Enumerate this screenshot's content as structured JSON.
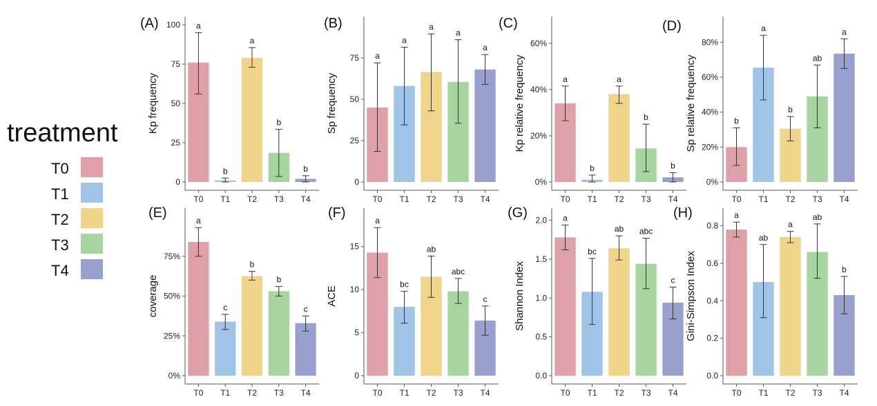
{
  "legend": {
    "title": "treatment",
    "items": [
      {
        "label": "T0",
        "color": "#E0A0A8"
      },
      {
        "label": "T1",
        "color": "#A0C4E8"
      },
      {
        "label": "T2",
        "color": "#EFD48A"
      },
      {
        "label": "T3",
        "color": "#A8D4A0"
      },
      {
        "label": "T4",
        "color": "#98A0D0"
      }
    ]
  },
  "chart_data": [
    {
      "panel": "(A)",
      "type": "bar",
      "ylabel": "Kp frequency",
      "categories": [
        "T0",
        "T1",
        "T2",
        "T3",
        "T4"
      ],
      "values": [
        76,
        1,
        79,
        18.5,
        2
      ],
      "err_low": [
        56,
        0,
        73,
        3.5,
        0
      ],
      "err_high": [
        95,
        2.5,
        85.5,
        33.5,
        4
      ],
      "letters": [
        "a",
        "b",
        "a",
        "b",
        "b"
      ],
      "ylim": [
        0,
        100
      ],
      "yticks": [
        0,
        25,
        50,
        75,
        100
      ],
      "ytick_labels": [
        "0",
        "25",
        "50",
        "75",
        "100"
      ]
    },
    {
      "panel": "(B)",
      "type": "bar",
      "ylabel": "Sp frequency",
      "categories": [
        "T0",
        "T1",
        "T2",
        "T3",
        "T4"
      ],
      "values": [
        45,
        58,
        66.5,
        60.5,
        68
      ],
      "err_low": [
        18.5,
        34.5,
        43,
        35.5,
        59
      ],
      "err_high": [
        72,
        81.5,
        89.5,
        86,
        77
      ],
      "letters": [
        "a",
        "a",
        "a",
        "a",
        "a"
      ],
      "ylim": [
        0,
        95
      ],
      "yticks": [
        0,
        25,
        50,
        75
      ],
      "ytick_labels": [
        "0",
        "25",
        "50",
        "75"
      ]
    },
    {
      "panel": "(C)",
      "type": "bar",
      "ylabel": "Kp relative frequency",
      "categories": [
        "T0",
        "T1",
        "T2",
        "T3",
        "T4"
      ],
      "values": [
        34,
        1,
        38,
        14.5,
        2
      ],
      "err_low": [
        26.5,
        0,
        34,
        4.5,
        0
      ],
      "err_high": [
        41.5,
        3,
        41.5,
        25,
        4
      ],
      "letters": [
        "a",
        "b",
        "a",
        "b",
        "b"
      ],
      "ylim": [
        0,
        68
      ],
      "yticks": [
        0,
        20,
        40,
        60
      ],
      "ytick_labels": [
        "0%",
        "20%",
        "40%",
        "60%"
      ]
    },
    {
      "panel": "(D)",
      "type": "bar",
      "ylabel": "Sp relative frequency",
      "categories": [
        "T0",
        "T1",
        "T2",
        "T3",
        "T4"
      ],
      "values": [
        20,
        65.5,
        30.5,
        49,
        73.5
      ],
      "err_low": [
        9.5,
        47,
        23.5,
        31,
        65
      ],
      "err_high": [
        31,
        84,
        37.5,
        67,
        82
      ],
      "letters": [
        "b",
        "a",
        "b",
        "ab",
        "a"
      ],
      "ylim": [
        0,
        90
      ],
      "yticks": [
        0,
        20,
        40,
        60,
        80
      ],
      "ytick_labels": [
        "0%",
        "20%",
        "40%",
        "60%",
        "80%"
      ]
    },
    {
      "panel": "(E)",
      "type": "bar",
      "ylabel": "coverage",
      "categories": [
        "T0",
        "T1",
        "T2",
        "T3",
        "T4"
      ],
      "values": [
        84,
        34,
        62.5,
        53,
        33
      ],
      "err_low": [
        75,
        29,
        60,
        50,
        28
      ],
      "err_high": [
        93,
        38.5,
        65.5,
        56,
        37.5
      ],
      "letters": [
        "a",
        "c",
        "b",
        "b",
        "c"
      ],
      "ylim": [
        0,
        100
      ],
      "yticks": [
        0,
        25,
        50,
        75
      ],
      "ytick_labels": [
        "0%",
        "25%",
        "50%",
        "75%"
      ]
    },
    {
      "panel": "(F)",
      "type": "bar",
      "ylabel": "ACE",
      "categories": [
        "T0",
        "T1",
        "T2",
        "T3",
        "T4"
      ],
      "values": [
        14.3,
        8,
        11.5,
        9.8,
        6.4
      ],
      "err_low": [
        11.4,
        6.1,
        9.1,
        8.4,
        4.7
      ],
      "err_high": [
        17.2,
        9.8,
        13.9,
        11.3,
        8.1
      ],
      "letters": [
        "a",
        "bc",
        "ab",
        "abc",
        "c"
      ],
      "ylim": [
        0,
        18.5
      ],
      "yticks": [
        0,
        5,
        10,
        15
      ],
      "ytick_labels": [
        "0",
        "5",
        "10",
        "15"
      ]
    },
    {
      "panel": "(G)",
      "type": "bar",
      "ylabel": "Shannon Index",
      "categories": [
        "T0",
        "T1",
        "T2",
        "T3",
        "T4"
      ],
      "values": [
        1.78,
        1.08,
        1.64,
        1.44,
        0.94
      ],
      "err_low": [
        1.62,
        0.66,
        1.49,
        1.12,
        0.73
      ],
      "err_high": [
        1.94,
        1.51,
        1.8,
        1.77,
        1.14
      ],
      "letters": [
        "a",
        "bc",
        "ab",
        "abc",
        "c"
      ],
      "ylim": [
        0,
        2.05
      ],
      "yticks": [
        0,
        0.5,
        1.0,
        1.5,
        2.0
      ],
      "ytick_labels": [
        "0.0",
        "0.5",
        "1.0",
        "1.5",
        "2.0"
      ]
    },
    {
      "panel": "(H)",
      "type": "bar",
      "ylabel": "Gini-Simpson Index",
      "categories": [
        "T0",
        "T1",
        "T2",
        "T3",
        "T4"
      ],
      "values": [
        0.78,
        0.5,
        0.74,
        0.66,
        0.43
      ],
      "err_low": [
        0.74,
        0.31,
        0.71,
        0.52,
        0.33
      ],
      "err_high": [
        0.82,
        0.7,
        0.77,
        0.81,
        0.53
      ],
      "letters": [
        "a",
        "ab",
        "a",
        "ab",
        "b"
      ],
      "ylim": [
        0,
        0.85
      ],
      "yticks": [
        0,
        0.2,
        0.4,
        0.6,
        0.8
      ],
      "ytick_labels": [
        "0.0",
        "0.2",
        "0.4",
        "0.6",
        "0.8"
      ]
    }
  ]
}
